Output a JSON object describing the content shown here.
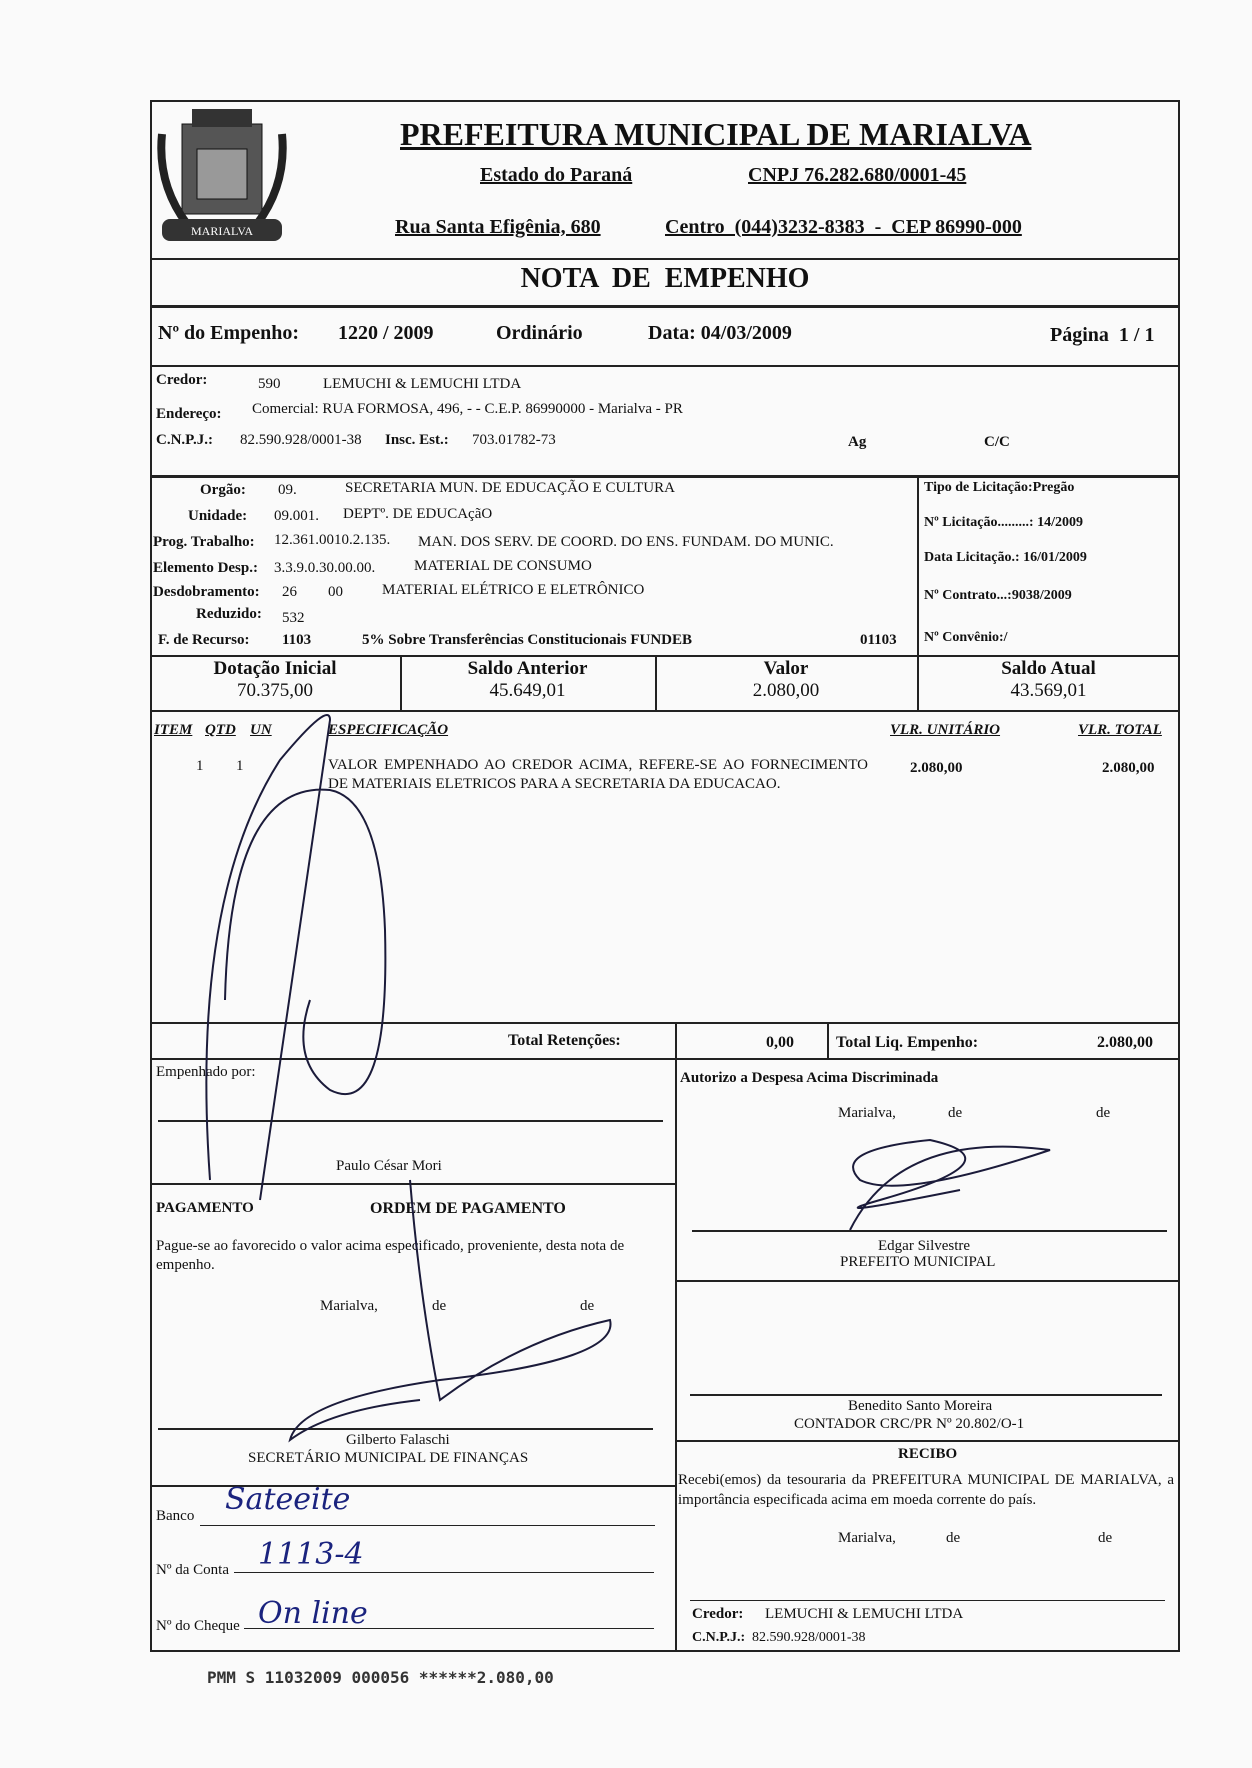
{
  "header": {
    "title": "PREFEITURA MUNICIPAL DE MARIALVA",
    "state": "Estado do Paraná",
    "cnpj": "CNPJ 76.282.680/0001-45",
    "address": "Rua Santa Efigênia, 680",
    "contact": "Centro  (044)3232-8383  -  CEP 86990-000",
    "logo": "coat-of-arms-icon",
    "logo_text": "MARIALVA"
  },
  "doc_title": "NOTA  DE  EMPENHO",
  "empenho": {
    "label": "Nº do Empenho:",
    "number": "1220 / 2009",
    "type": "Ordinário",
    "date": "Data: 04/03/2009",
    "page": "Página  1 / 1"
  },
  "credor": {
    "label": "Credor:",
    "code": "590",
    "name": "LEMUCHI & LEMUCHI LTDA",
    "address_label": "Endereço:",
    "address": "Comercial: RUA FORMOSA, 496, - - C.E.P. 86990000  -  Marialva  -  PR",
    "cnpj_label": "C.N.P.J.:",
    "cnpj": "82.590.928/0001-38",
    "ie_label": "Insc. Est.:",
    "ie": "703.01782-73",
    "ag": "Ag",
    "cc": "C/C"
  },
  "dotacao": {
    "orgao_label": "Orgão:",
    "orgao_code": "09.",
    "orgao": "SECRETARIA MUN. DE EDUCAÇÃO E CULTURA",
    "unidade_label": "Unidade:",
    "unidade_code": "09.001.",
    "unidade": "DEPTº. DE EDUCAçãO",
    "prog_label": "Prog. Trabalho:",
    "prog_code": "12.361.0010.2.135.",
    "prog": "MAN. DOS SERV. DE COORD. DO ENS. FUNDAM. DO MUNIC.",
    "elem_label": "Elemento Desp.:",
    "elem_code": "3.3.9.0.30.00.00.",
    "elem": "MATERIAL DE CONSUMO",
    "desd_label": "Desdobramento:",
    "desd_code": "26",
    "desd_sub": "00",
    "desd": "MATERIAL ELÉTRICO E ELETRÔNICO",
    "red_label": "Reduzido:",
    "red": "532",
    "rec_label": "F. de Recurso:",
    "rec_code": "1103",
    "rec": "5% Sobre Transferências Constitucionais FUNDEB",
    "rec_num": "01103"
  },
  "licitacao": {
    "tipo": "Tipo de Licitação:Pregão",
    "numero": "Nº Licitação.........: 14/2009",
    "data": "Data Licitação.: 16/01/2009",
    "contrato": "Nº Contrato...:9038/2009",
    "convenio": "Nº Convênio:/"
  },
  "saldos": [
    {
      "label": "Dotação Inicial",
      "value": "70.375,00"
    },
    {
      "label": "Saldo Anterior",
      "value": "45.649,01"
    },
    {
      "label": "Valor",
      "value": "2.080,00"
    },
    {
      "label": "Saldo Atual",
      "value": "43.569,01"
    }
  ],
  "items": {
    "headers": {
      "item": "ITEM",
      "qtd": "QTD",
      "un": "UN",
      "spec": "ESPECIFICAÇÃO",
      "unit": "VLR. UNITÁRIO",
      "total": "VLR. TOTAL"
    },
    "rows": [
      {
        "item": "1",
        "qtd": "1",
        "un": "",
        "spec": "VALOR EMPENHADO AO CREDOR ACIMA, REFERE-SE AO FORNECIMENTO DE MATERIAIS ELETRICOS PARA A SECRETARIA DA EDUCACAO.",
        "unit": "2.080,00",
        "total": "2.080,00"
      }
    ]
  },
  "totals": {
    "ret_label": "Total Retenções:",
    "ret": "0,00",
    "liq_label": "Total Liq. Empenho:",
    "liq": "2.080,00"
  },
  "empenhado": {
    "label": "Empenhado por:",
    "name": "Paulo César Mori"
  },
  "autorizo": {
    "label": "Autorizo a Despesa Acima Discriminada",
    "place": "Marialva,",
    "de1": "de",
    "de2": "de",
    "name": "Edgar Silvestre",
    "role": "PREFEITO MUNICIPAL"
  },
  "pagamento": {
    "label": "PAGAMENTO",
    "title": "ORDEM DE PAGAMENTO",
    "text": "Pague-se ao favorecido o valor acima especificado, proveniente, desta nota de empenho.",
    "place": "Marialva,",
    "de1": "de",
    "de2": "de",
    "name": "Gilberto Falaschi",
    "role": "SECRETÁRIO MUNICIPAL DE FINANÇAS"
  },
  "contador": {
    "name": "Benedito Santo Moreira",
    "role": "CONTADOR CRC/PR Nº 20.802/O-1"
  },
  "recibo": {
    "title": "RECIBO",
    "text": "Recebi(emos) da tesouraria da PREFEITURA MUNICIPAL DE MARIALVA, a importância especificada acima em moeda corrente do país.",
    "place": "Marialva,",
    "de1": "de",
    "de2": "de",
    "credor_label": "Credor:",
    "credor": "LEMUCHI & LEMUCHI LTDA",
    "cnpj_label": "C.N.P.J.:",
    "cnpj": "82.590.928/0001-38"
  },
  "banco": {
    "banco_label": "Banco",
    "banco": "Sateeite",
    "conta_label": "Nº da Conta",
    "conta": "1113-4",
    "cheque_label": "Nº do Cheque",
    "cheque": "On line"
  },
  "stamp": "PMM S 11032009 000056 ******2.080,00"
}
